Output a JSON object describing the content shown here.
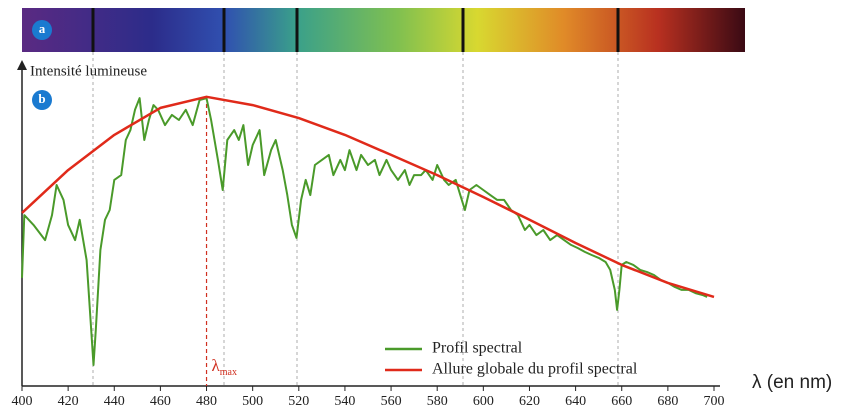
{
  "chart_data": {
    "type": "line",
    "panel_labels": [
      "a",
      "b"
    ],
    "ylabel": "Intensité lumineuse",
    "xlabel": "λ (en nm)",
    "xlim": [
      400,
      700
    ],
    "xticks": [
      400,
      420,
      440,
      460,
      480,
      500,
      520,
      540,
      560,
      580,
      600,
      620,
      640,
      660,
      680,
      700
    ],
    "ylim": [
      0,
      100
    ],
    "legend": "bottom-right",
    "annotation": {
      "x": 480,
      "symbol": "λ",
      "subscript": "max",
      "color": "#d03020"
    },
    "series": [
      {
        "name": "Profil spectral",
        "color": "#4a9a2a",
        "x": [
          400,
          401,
          405,
          410,
          413,
          415,
          418,
          420,
          423,
          425,
          428,
          430,
          431,
          432,
          434,
          436,
          438,
          440,
          443,
          445,
          447,
          449,
          451,
          453,
          455,
          457,
          459,
          462,
          465,
          468,
          471,
          474,
          477,
          480,
          482,
          485,
          487,
          489,
          492,
          494,
          496,
          498,
          500,
          503,
          505,
          508,
          510,
          513,
          515,
          517,
          519,
          521,
          523,
          525,
          527,
          530,
          533,
          535,
          538,
          540,
          542,
          545,
          547,
          550,
          553,
          555,
          558,
          560,
          563,
          566,
          568,
          570,
          573,
          575,
          578,
          580,
          583,
          585,
          588,
          590,
          592,
          594,
          597,
          600,
          603,
          606,
          609,
          612,
          615,
          618,
          620,
          623,
          626,
          629,
          632,
          635,
          638,
          641,
          644,
          647,
          650,
          653,
          655,
          657,
          658,
          659,
          660,
          662,
          665,
          668,
          671,
          674,
          677,
          680,
          683,
          686,
          689,
          692,
          695,
          697
        ],
        "values": [
          33.8,
          53.6,
          50.5,
          45.7,
          53.6,
          63.1,
          58.4,
          50.5,
          45.7,
          52.1,
          39.4,
          17.4,
          6.3,
          17.4,
          42.6,
          52.1,
          55.2,
          64.7,
          66.2,
          77.3,
          80.4,
          86.8,
          90.5,
          77.3,
          83.6,
          88.3,
          86.8,
          82.0,
          85.2,
          83.6,
          86.8,
          82.0,
          89.9,
          90.5,
          83.6,
          70.7,
          61.5,
          77.3,
          80.4,
          77.3,
          82.0,
          69.4,
          75.7,
          80.4,
          66.2,
          74.1,
          77.3,
          67.8,
          59.9,
          50.5,
          46.4,
          58.4,
          64.7,
          59.9,
          69.4,
          71.0,
          72.6,
          66.2,
          71.0,
          67.8,
          74.1,
          67.8,
          72.6,
          69.4,
          71.0,
          66.2,
          71.0,
          67.8,
          64.7,
          67.8,
          63.1,
          66.2,
          66.2,
          67.8,
          64.7,
          69.4,
          64.7,
          63.1,
          64.7,
          59.9,
          55.2,
          61.5,
          63.1,
          61.5,
          59.9,
          58.4,
          58.4,
          55.2,
          53.6,
          48.9,
          50.5,
          47.3,
          48.9,
          45.7,
          47.3,
          45.7,
          44.2,
          43.2,
          42.0,
          41.0,
          40.1,
          38.8,
          36.3,
          30.0,
          23.7,
          30.0,
          37.9,
          38.8,
          37.9,
          36.3,
          35.6,
          34.7,
          33.1,
          32.2,
          30.9,
          30.0,
          30.0,
          29.0,
          28.4,
          27.8
        ]
      },
      {
        "name": "Allure globale du profil spectral",
        "color": "#e02a1a",
        "x": [
          400,
          420,
          440,
          460,
          480,
          500,
          520,
          540,
          560,
          580,
          600,
          620,
          640,
          660,
          680,
          700
        ],
        "values": [
          54.3,
          67.8,
          78.9,
          87.4,
          90.9,
          88.3,
          84.2,
          78.9,
          72.6,
          66.2,
          59.3,
          52.1,
          44.8,
          37.9,
          32.2,
          27.8
        ]
      }
    ]
  }
}
